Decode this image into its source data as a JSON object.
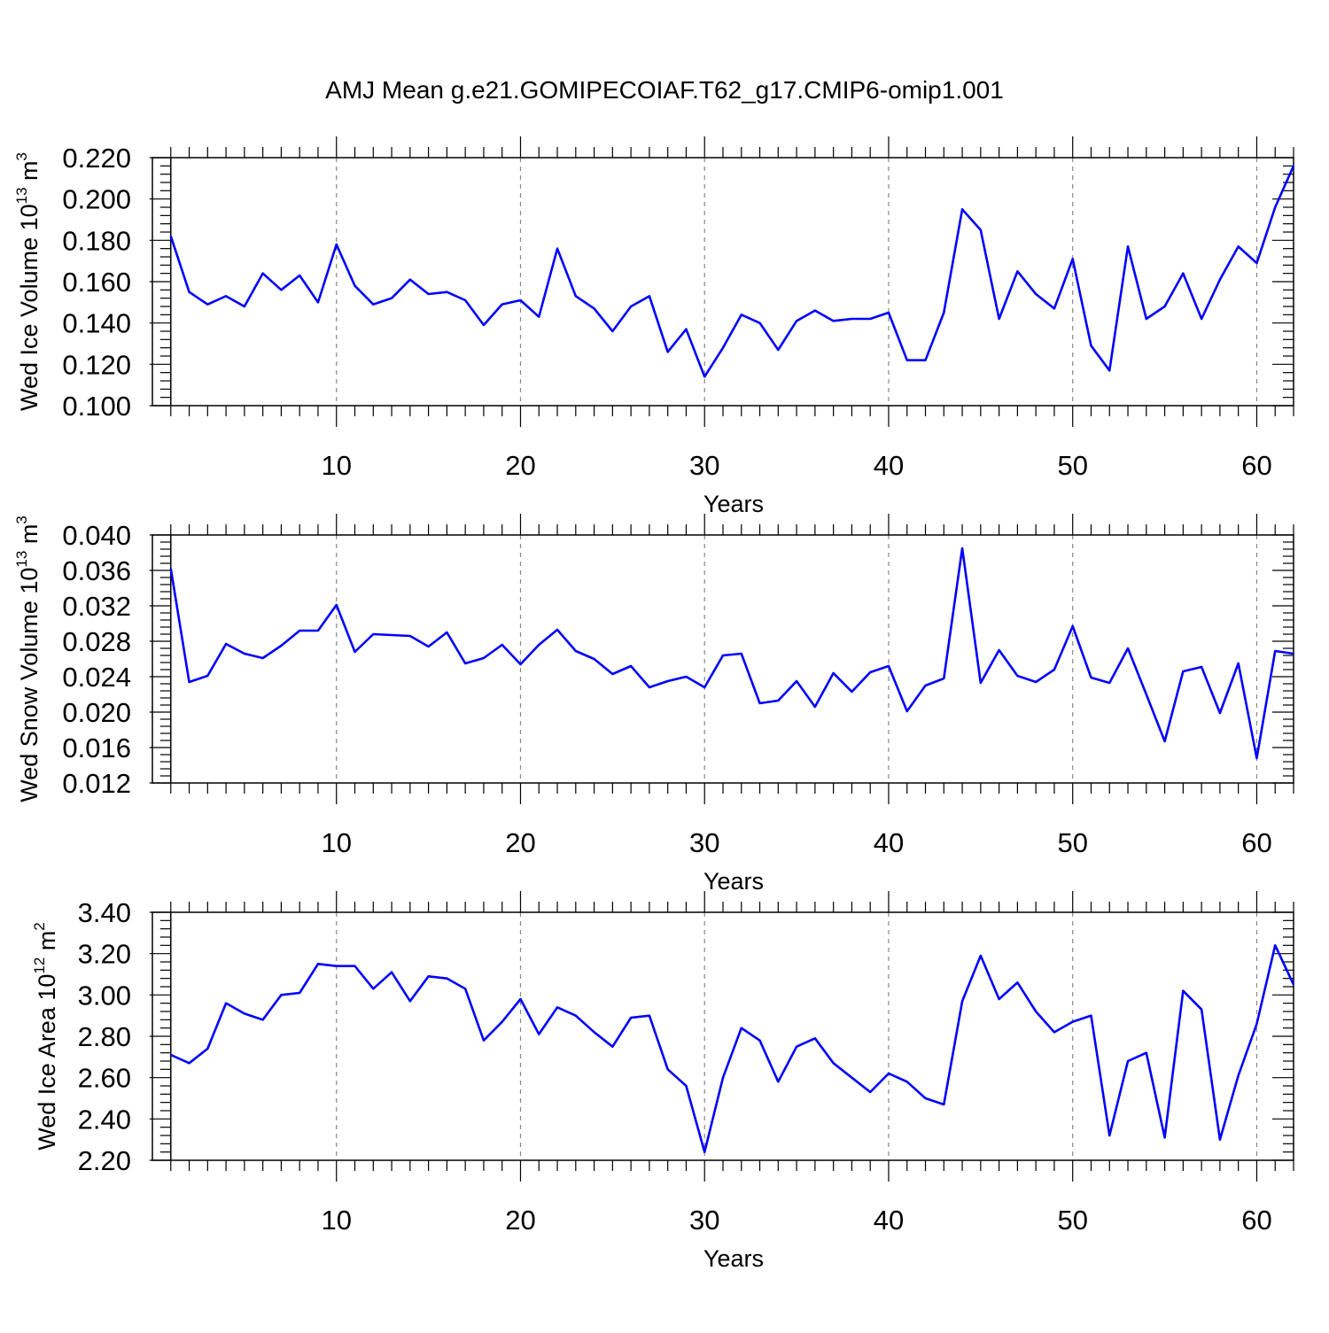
{
  "title": "AMJ Mean g.e21.GOMIPECOIAF.T62_g17.CMIP6-omip1.001",
  "colors": {
    "line": "#0000ff",
    "grid": "#888888",
    "axis": "#000000"
  },
  "chart_data": [
    {
      "type": "line",
      "ylabel": {
        "main": "Wed Ice Volume 10",
        "exp": "13",
        "unit": " m",
        "unit_exp": "3"
      },
      "xlabel": "Years",
      "xlim": [
        1,
        62
      ],
      "ylim": [
        0.1,
        0.22
      ],
      "grid": "vertical dashed at major x ticks",
      "x_ticks": [
        10,
        20,
        30,
        40,
        50,
        60
      ],
      "y_ticks": [
        "0.100",
        "0.120",
        "0.140",
        "0.160",
        "0.180",
        "0.200",
        "0.220"
      ],
      "series": [
        {
          "x": [
            1,
            2,
            3,
            4,
            5,
            6,
            7,
            8,
            9,
            10,
            11,
            12,
            13,
            14,
            15,
            16,
            17,
            18,
            19,
            20,
            21,
            22,
            23,
            24,
            25,
            26,
            27,
            28,
            29,
            30,
            31,
            32,
            33,
            34,
            35,
            36,
            37,
            38,
            39,
            40,
            41,
            42,
            43,
            44,
            45,
            46,
            47,
            48,
            49,
            50,
            51,
            52,
            53,
            54,
            55,
            56,
            57,
            58,
            59,
            60,
            61,
            62
          ],
          "values": [
            0.182,
            0.155,
            0.149,
            0.153,
            0.148,
            0.164,
            0.156,
            0.163,
            0.15,
            0.178,
            0.158,
            0.149,
            0.152,
            0.161,
            0.154,
            0.155,
            0.151,
            0.139,
            0.149,
            0.151,
            0.143,
            0.176,
            0.153,
            0.147,
            0.136,
            0.148,
            0.153,
            0.126,
            0.137,
            0.114,
            0.128,
            0.144,
            0.14,
            0.127,
            0.141,
            0.146,
            0.141,
            0.142,
            0.142,
            0.145,
            0.122,
            0.122,
            0.145,
            0.195,
            0.185,
            0.142,
            0.165,
            0.154,
            0.147,
            0.171,
            0.129,
            0.117,
            0.177,
            0.142,
            0.148,
            0.164,
            0.142,
            0.161,
            0.177,
            0.169,
            0.196,
            0.216
          ]
        }
      ]
    },
    {
      "type": "line",
      "ylabel": {
        "main": "Wed Snow Volume 10",
        "exp": "13",
        "unit": " m",
        "unit_exp": "3"
      },
      "xlabel": "Years",
      "xlim": [
        1,
        62
      ],
      "ylim": [
        0.012,
        0.04
      ],
      "grid": "vertical dashed at major x ticks",
      "x_ticks": [
        10,
        20,
        30,
        40,
        50,
        60
      ],
      "y_ticks": [
        "0.012",
        "0.016",
        "0.020",
        "0.024",
        "0.028",
        "0.032",
        "0.036",
        "0.040"
      ],
      "series": [
        {
          "x": [
            1,
            2,
            3,
            4,
            5,
            6,
            7,
            8,
            9,
            10,
            11,
            12,
            13,
            14,
            15,
            16,
            17,
            18,
            19,
            20,
            21,
            22,
            23,
            24,
            25,
            26,
            27,
            28,
            29,
            30,
            31,
            32,
            33,
            34,
            35,
            36,
            37,
            38,
            39,
            40,
            41,
            42,
            43,
            44,
            45,
            46,
            47,
            48,
            49,
            50,
            51,
            52,
            53,
            54,
            55,
            56,
            57,
            58,
            59,
            60,
            61,
            62
          ],
          "values": [
            0.0362,
            0.0234,
            0.0241,
            0.0277,
            0.0266,
            0.0261,
            0.0275,
            0.0292,
            0.0292,
            0.0321,
            0.0268,
            0.0288,
            0.0287,
            0.0286,
            0.0274,
            0.029,
            0.0255,
            0.0261,
            0.0276,
            0.0254,
            0.0276,
            0.0293,
            0.0269,
            0.026,
            0.0243,
            0.0252,
            0.0228,
            0.0235,
            0.024,
            0.0228,
            0.0264,
            0.0266,
            0.021,
            0.0213,
            0.0235,
            0.0206,
            0.0244,
            0.0223,
            0.0245,
            0.0252,
            0.0201,
            0.023,
            0.0238,
            0.0385,
            0.0233,
            0.027,
            0.0241,
            0.0234,
            0.0248,
            0.0297,
            0.0239,
            0.0233,
            0.0272,
            0.022,
            0.0167,
            0.0246,
            0.0251,
            0.0199,
            0.0255,
            0.0148,
            0.0269,
            0.0266
          ]
        }
      ]
    },
    {
      "type": "line",
      "ylabel": {
        "main": "Wed Ice Area 10",
        "exp": "12",
        "unit": " m",
        "unit_exp": "2"
      },
      "xlabel": "Years",
      "xlim": [
        1,
        62
      ],
      "ylim": [
        2.2,
        3.4
      ],
      "grid": "vertical dashed at major x ticks",
      "x_ticks": [
        10,
        20,
        30,
        40,
        50,
        60
      ],
      "y_ticks": [
        "2.20",
        "2.40",
        "2.60",
        "2.80",
        "3.00",
        "3.20",
        "3.40"
      ],
      "series": [
        {
          "x": [
            1,
            2,
            3,
            4,
            5,
            6,
            7,
            8,
            9,
            10,
            11,
            12,
            13,
            14,
            15,
            16,
            17,
            18,
            19,
            20,
            21,
            22,
            23,
            24,
            25,
            26,
            27,
            28,
            29,
            30,
            31,
            32,
            33,
            34,
            35,
            36,
            37,
            38,
            39,
            40,
            41,
            42,
            43,
            44,
            45,
            46,
            47,
            48,
            49,
            50,
            51,
            52,
            53,
            54,
            55,
            56,
            57,
            58,
            59,
            60,
            61,
            62
          ],
          "values": [
            2.71,
            2.67,
            2.74,
            2.96,
            2.91,
            2.88,
            3.0,
            3.01,
            3.15,
            3.14,
            3.14,
            3.03,
            3.11,
            2.97,
            3.09,
            3.08,
            3.03,
            2.78,
            2.87,
            2.98,
            2.81,
            2.94,
            2.9,
            2.82,
            2.75,
            2.89,
            2.9,
            2.64,
            2.56,
            2.24,
            2.6,
            2.84,
            2.78,
            2.58,
            2.75,
            2.79,
            2.67,
            2.6,
            2.53,
            2.62,
            2.58,
            2.5,
            2.47,
            2.97,
            3.19,
            2.98,
            3.06,
            2.92,
            2.82,
            2.87,
            2.9,
            2.32,
            2.68,
            2.72,
            2.31,
            3.02,
            2.93,
            2.3,
            2.61,
            2.86,
            3.24,
            3.05
          ]
        }
      ]
    }
  ]
}
